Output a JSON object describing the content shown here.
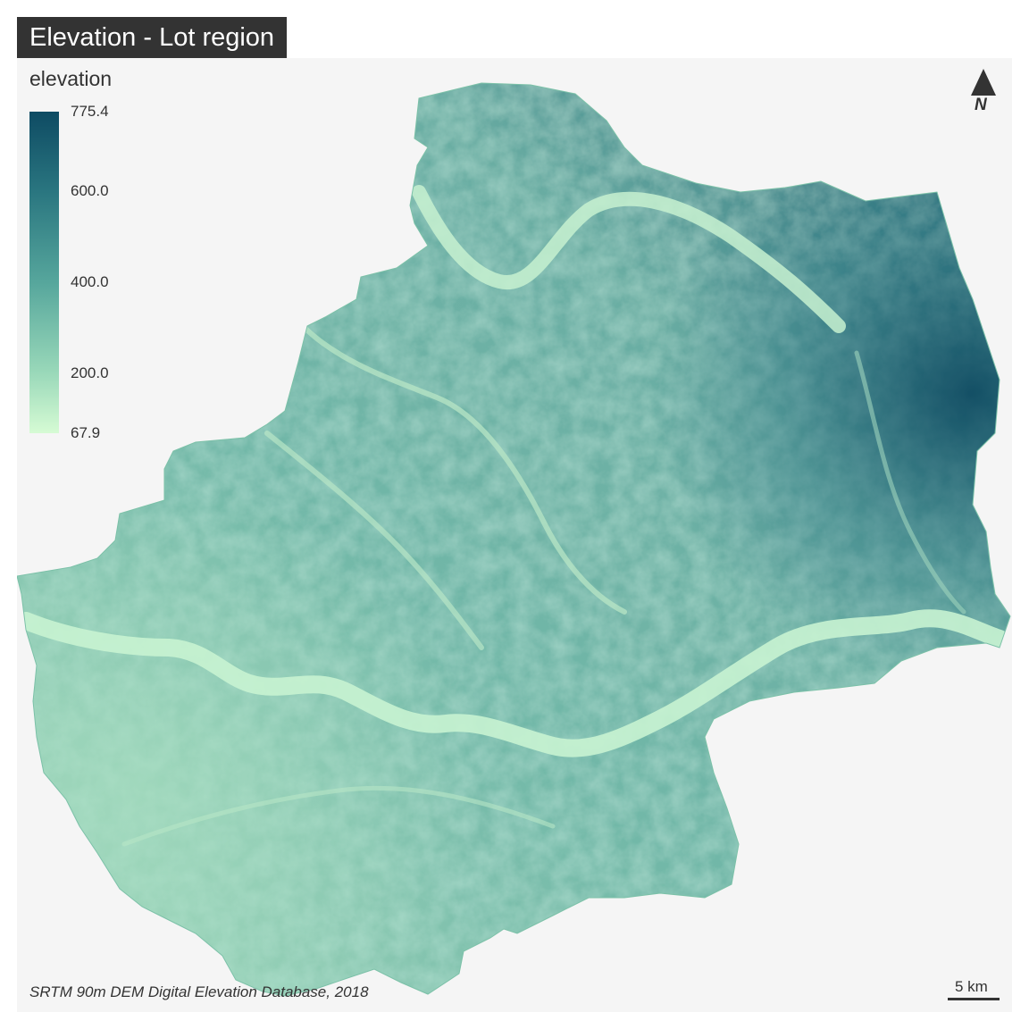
{
  "title": "Elevation - Lot region",
  "legend": {
    "title": "elevation",
    "min": 67.9,
    "max": 775.4,
    "ticks": [
      "775.4",
      "600.0",
      "400.0",
      "200.0",
      "67.9"
    ],
    "tick_values": [
      775.4,
      600.0,
      400.0,
      200.0,
      67.9
    ],
    "palette": [
      "#d6fbd4",
      "#99d8b9",
      "#56a69c",
      "#2a7680",
      "#0e4b63"
    ]
  },
  "north_arrow": {
    "icon": "north-arrow-icon",
    "label": "N"
  },
  "scale_bar": {
    "label": "5 km"
  },
  "credits": "SRTM 90m DEM Digital Elevation Database, 2018",
  "colors": {
    "panel_background": "#f5f5f5",
    "title_background": "#333333",
    "title_text": "#ffffff",
    "text": "#333333"
  }
}
